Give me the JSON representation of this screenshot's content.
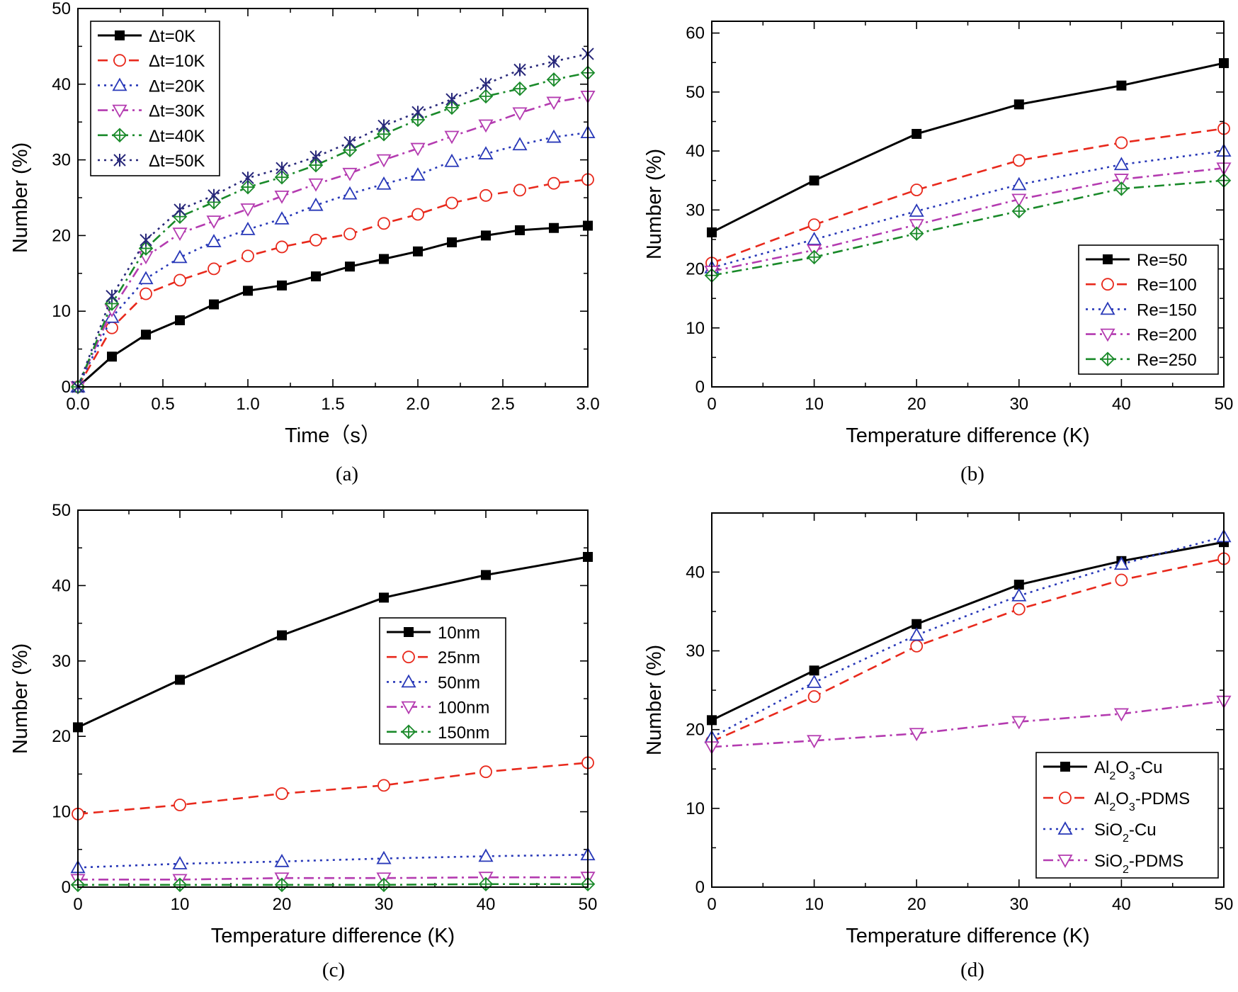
{
  "chart_data": [
    {
      "panel_label": "(a)",
      "type": "line",
      "xlabel": "Time（s）",
      "ylabel": "Number (%)",
      "xlim": [
        0,
        3
      ],
      "ylim": [
        0,
        50
      ],
      "xticks": [
        0,
        0.5,
        1,
        1.5,
        2,
        2.5,
        3
      ],
      "xtick_labels": [
        "0.0",
        "0.5",
        "1.0",
        "1.5",
        "2.0",
        "2.5",
        "3.0"
      ],
      "yticks": [
        0,
        10,
        20,
        30,
        40,
        50
      ],
      "ytick_labels": [
        "0",
        "10",
        "20",
        "30",
        "40",
        "50"
      ],
      "legend_position": "top-left",
      "x": [
        0,
        0.2,
        0.4,
        0.6,
        0.8,
        1.0,
        1.2,
        1.4,
        1.6,
        1.8,
        2.0,
        2.2,
        2.4,
        2.6,
        2.8,
        3.0
      ],
      "series": [
        {
          "name": "Δt=0K",
          "color": "#000000",
          "dash": "solid",
          "marker": "square",
          "values": [
            0,
            4.0,
            6.9,
            8.8,
            10.9,
            12.7,
            13.4,
            14.6,
            15.9,
            16.9,
            17.9,
            19.1,
            20.0,
            20.7,
            21.0,
            21.3
          ]
        },
        {
          "name": "Δt=10K",
          "color": "#e8291c",
          "dash": "dash",
          "marker": "circle",
          "values": [
            0,
            7.8,
            12.3,
            14.1,
            15.6,
            17.3,
            18.5,
            19.4,
            20.2,
            21.6,
            22.8,
            24.3,
            25.3,
            26.0,
            26.9,
            27.4
          ]
        },
        {
          "name": "Δt=20K",
          "color": "#2838b8",
          "dash": "dot",
          "marker": "triangle",
          "values": [
            0,
            9.2,
            14.3,
            17.1,
            19.2,
            20.8,
            22.2,
            24.0,
            25.5,
            26.8,
            28.0,
            29.8,
            30.8,
            32.0,
            33.0,
            33.6
          ]
        },
        {
          "name": "Δt=30K",
          "color": "#b43bb0",
          "dash": "dashdot",
          "marker": "tri-down",
          "values": [
            0,
            10.2,
            17.2,
            20.3,
            21.9,
            23.5,
            25.2,
            26.8,
            28.2,
            30.0,
            31.5,
            33.1,
            34.6,
            36.2,
            37.6,
            38.4
          ]
        },
        {
          "name": "Δt=40K",
          "color": "#1a8a2a",
          "dash": "dashdot",
          "marker": "diamond",
          "values": [
            0,
            11.0,
            18.3,
            22.5,
            24.4,
            26.4,
            27.7,
            29.3,
            31.3,
            33.4,
            35.3,
            36.9,
            38.4,
            39.4,
            40.6,
            41.5
          ]
        },
        {
          "name": "Δt=50K",
          "color": "#28287a",
          "dash": "dot",
          "marker": "xstar",
          "values": [
            0,
            12.0,
            19.4,
            23.4,
            25.3,
            27.6,
            28.9,
            30.4,
            32.3,
            34.5,
            36.3,
            38.0,
            40.0,
            41.9,
            43.0,
            44.0
          ]
        }
      ]
    },
    {
      "panel_label": "(b)",
      "type": "line",
      "xlabel": "Temperature difference (K)",
      "ylabel": "Number (%)",
      "xlim": [
        0,
        50
      ],
      "ylim": [
        0,
        62
      ],
      "xticks": [
        0,
        10,
        20,
        30,
        40,
        50
      ],
      "xtick_labels": [
        "0",
        "10",
        "20",
        "30",
        "40",
        "50"
      ],
      "yticks": [
        0,
        10,
        20,
        30,
        40,
        50,
        60
      ],
      "ytick_labels": [
        "0",
        "10",
        "20",
        "30",
        "40",
        "50",
        "60"
      ],
      "legend_position": "bottom-right",
      "x": [
        0,
        10,
        20,
        30,
        40,
        50
      ],
      "series": [
        {
          "name": "Re=50",
          "color": "#000000",
          "dash": "solid",
          "marker": "square",
          "values": [
            26.2,
            35.0,
            42.9,
            47.9,
            51.1,
            54.9
          ]
        },
        {
          "name": "Re=100",
          "color": "#e8291c",
          "dash": "dash",
          "marker": "circle",
          "values": [
            21.0,
            27.5,
            33.4,
            38.4,
            41.4,
            43.8
          ]
        },
        {
          "name": "Re=150",
          "color": "#2838b8",
          "dash": "dot",
          "marker": "triangle",
          "values": [
            20.2,
            25.0,
            29.8,
            34.3,
            37.7,
            40.0
          ]
        },
        {
          "name": "Re=200",
          "color": "#b43bb0",
          "dash": "dashdot",
          "marker": "tri-down",
          "values": [
            19.6,
            23.2,
            27.5,
            31.8,
            35.2,
            37.1
          ]
        },
        {
          "name": "Re=250",
          "color": "#1a8a2a",
          "dash": "dashdot",
          "marker": "diamond",
          "values": [
            18.9,
            22.0,
            26.0,
            29.8,
            33.6,
            35.0
          ]
        }
      ]
    },
    {
      "panel_label": "(c)",
      "type": "line",
      "xlabel": "Temperature difference (K)",
      "ylabel": "Number (%)",
      "xlim": [
        0,
        50
      ],
      "ylim": [
        0,
        50
      ],
      "xticks": [
        0,
        10,
        20,
        30,
        40,
        50
      ],
      "xtick_labels": [
        "0",
        "10",
        "20",
        "30",
        "40",
        "50"
      ],
      "yticks": [
        0,
        10,
        20,
        30,
        40,
        50
      ],
      "ytick_labels": [
        "0",
        "10",
        "20",
        "30",
        "40",
        "50"
      ],
      "legend_position": "center-right",
      "x": [
        0,
        10,
        20,
        30,
        40,
        50
      ],
      "series": [
        {
          "name": "10nm",
          "color": "#000000",
          "dash": "solid",
          "marker": "square",
          "values": [
            21.2,
            27.5,
            33.4,
            38.4,
            41.4,
            43.8
          ]
        },
        {
          "name": "25nm",
          "color": "#e8291c",
          "dash": "dash",
          "marker": "circle",
          "values": [
            9.7,
            10.9,
            12.4,
            13.5,
            15.3,
            16.5
          ]
        },
        {
          "name": "50nm",
          "color": "#2838b8",
          "dash": "dot",
          "marker": "triangle",
          "values": [
            2.6,
            3.1,
            3.4,
            3.8,
            4.1,
            4.3
          ]
        },
        {
          "name": "100nm",
          "color": "#b43bb0",
          "dash": "dashdot",
          "marker": "tri-down",
          "values": [
            1.0,
            1.0,
            1.2,
            1.2,
            1.3,
            1.3
          ]
        },
        {
          "name": "150nm",
          "color": "#1a8a2a",
          "dash": "dashdot",
          "marker": "diamond",
          "values": [
            0.3,
            0.3,
            0.3,
            0.3,
            0.4,
            0.4
          ]
        }
      ]
    },
    {
      "panel_label": "(d)",
      "type": "line",
      "xlabel": "Temperature difference (K)",
      "ylabel": "Number (%)",
      "xlim": [
        0,
        50
      ],
      "ylim": [
        0,
        47.5
      ],
      "xticks": [
        0,
        10,
        20,
        30,
        40,
        50
      ],
      "xtick_labels": [
        "0",
        "10",
        "20",
        "30",
        "40",
        "50"
      ],
      "yticks": [
        0,
        10,
        20,
        30,
        40
      ],
      "ytick_labels": [
        "0",
        "10",
        "20",
        "30",
        "40"
      ],
      "legend_position": "bottom-right",
      "x": [
        0,
        10,
        20,
        30,
        40,
        50
      ],
      "series": [
        {
          "name": "Al2O3-Cu",
          "label_parts": [
            [
              "Al",
              ""
            ],
            [
              "2",
              "sub"
            ],
            [
              "O",
              ""
            ],
            [
              "3",
              "sub"
            ],
            [
              "-Cu",
              ""
            ]
          ],
          "color": "#000000",
          "dash": "solid",
          "marker": "square",
          "values": [
            21.2,
            27.5,
            33.4,
            38.4,
            41.4,
            43.8
          ]
        },
        {
          "name": "Al2O3-PDMS",
          "label_parts": [
            [
              "Al",
              ""
            ],
            [
              "2",
              "sub"
            ],
            [
              "O",
              ""
            ],
            [
              "3",
              "sub"
            ],
            [
              "-PDMS",
              ""
            ]
          ],
          "color": "#e8291c",
          "dash": "dash",
          "marker": "circle",
          "values": [
            18.5,
            24.2,
            30.6,
            35.3,
            39.0,
            41.7
          ]
        },
        {
          "name": "SiO2-Cu",
          "label_parts": [
            [
              "SiO",
              ""
            ],
            [
              "2",
              "sub"
            ],
            [
              "-Cu",
              ""
            ]
          ],
          "color": "#2838b8",
          "dash": "dot",
          "marker": "triangle",
          "values": [
            19.0,
            26.0,
            32.0,
            37.0,
            41.0,
            44.5
          ]
        },
        {
          "name": "SiO2-PDMS",
          "label_parts": [
            [
              "SiO",
              ""
            ],
            [
              "2",
              "sub"
            ],
            [
              "-PDMS",
              ""
            ]
          ],
          "color": "#b43bb0",
          "dash": "dashdot",
          "marker": "tri-down",
          "values": [
            17.8,
            18.6,
            19.5,
            21.0,
            22.0,
            23.6
          ]
        }
      ]
    }
  ]
}
